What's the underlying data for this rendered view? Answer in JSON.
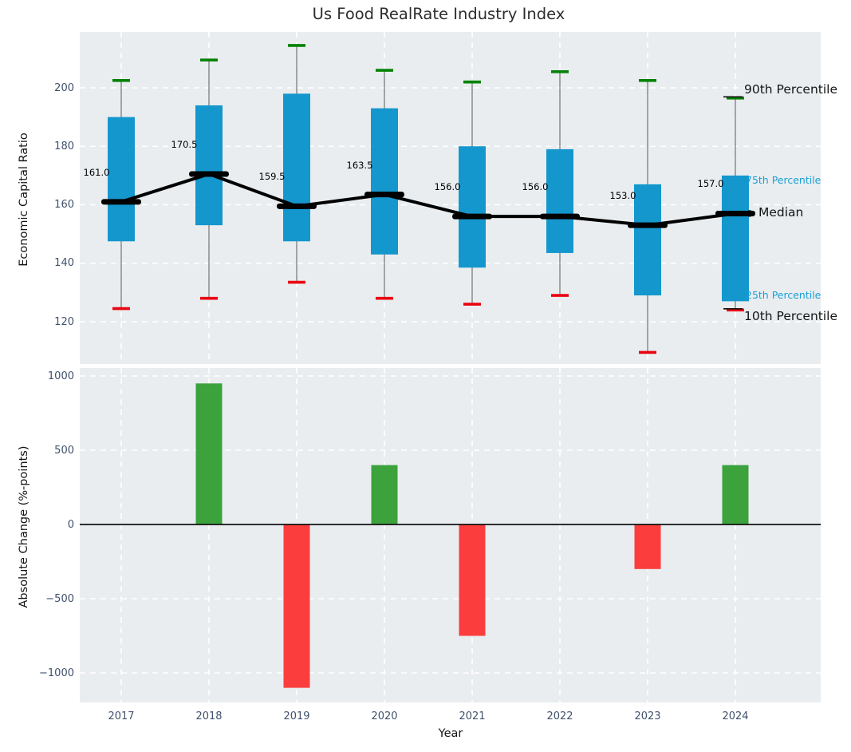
{
  "title": "Us Food RealRate Industry Index",
  "colors": {
    "box_blue": "#1497cd",
    "blue_label_text": "#1a9fd6",
    "bar_green": "#3ba23c",
    "bar_red": "#fb3d3d",
    "cap_green": "#058205",
    "cap_red": "#ea0410",
    "median_black": "#000000",
    "zero_line": "#111111",
    "whisker_gray": "#828282",
    "panel_bg": "#e9edf0",
    "grid_white": "#ffffff",
    "tick_text": "#40516b",
    "title_text": "#2d2d2d",
    "axis_label_text": "#141414"
  },
  "chart_data": [
    {
      "type": "boxplot",
      "title": "Us Food RealRate Industry Index",
      "ylabel": "Economic Capital Ratio",
      "categories": [
        "2017",
        "2018",
        "2019",
        "2020",
        "2021",
        "2022",
        "2023",
        "2024"
      ],
      "yticks": [
        "200",
        "180",
        "160",
        "140",
        "120"
      ],
      "ytick_values": [
        200,
        180,
        160,
        140,
        120
      ],
      "ylim": [
        105,
        219
      ],
      "grid": true,
      "series": [
        {
          "name": "90th Percentile",
          "values": [
            202.5,
            209.5,
            214.5,
            206.0,
            202.0,
            205.5,
            202.5,
            196.5
          ]
        },
        {
          "name": "75th Percentile",
          "values": [
            190.0,
            194.0,
            198.0,
            193.0,
            180.0,
            179.0,
            167.0,
            170.0
          ]
        },
        {
          "name": "Median",
          "values": [
            161.0,
            170.5,
            159.5,
            163.5,
            156.0,
            156.0,
            153.0,
            157.0
          ]
        },
        {
          "name": "25th Percentile",
          "values": [
            147.5,
            153.0,
            147.5,
            143.0,
            138.5,
            143.5,
            129.0,
            127.0
          ]
        },
        {
          "name": "10th Percentile",
          "values": [
            124.5,
            128.0,
            133.5,
            128.0,
            126.0,
            129.0,
            109.5,
            124.0
          ]
        }
      ],
      "median_labels": [
        "161.0",
        "170.5",
        "159.5",
        "163.5",
        "156.0",
        "156.0",
        "153.0",
        "157.0"
      ],
      "right_labels": [
        {
          "text": "90th Percentile",
          "size": "large",
          "color_key": "axis_label_text",
          "leader": "line",
          "anchor": "p90"
        },
        {
          "text": "75th Percentile",
          "size": "small",
          "color_key": "blue_label_text",
          "leader": "none",
          "anchor": "p75"
        },
        {
          "text": "Median",
          "size": "large",
          "color_key": "axis_label_text",
          "leader": "dot",
          "anchor": "median"
        },
        {
          "text": "25th Percentile",
          "size": "small",
          "color_key": "blue_label_text",
          "leader": "none",
          "anchor": "p25"
        },
        {
          "text": "10th Percentile",
          "size": "large",
          "color_key": "axis_label_text",
          "leader": "line",
          "anchor": "p10"
        }
      ]
    },
    {
      "type": "bar",
      "ylabel": "Absolute Change (%-points)",
      "xlabel": "Year",
      "categories": [
        "2017",
        "2018",
        "2019",
        "2020",
        "2021",
        "2022",
        "2023",
        "2024"
      ],
      "values": [
        null,
        950,
        -1100,
        400,
        -750,
        0,
        -300,
        400
      ],
      "yticks": [
        "1000",
        "500",
        "0",
        "−500",
        "−1000"
      ],
      "ytick_values": [
        1000,
        500,
        0,
        -500,
        -1000
      ],
      "ylim": [
        -1200,
        1055
      ],
      "grid": true
    }
  ]
}
